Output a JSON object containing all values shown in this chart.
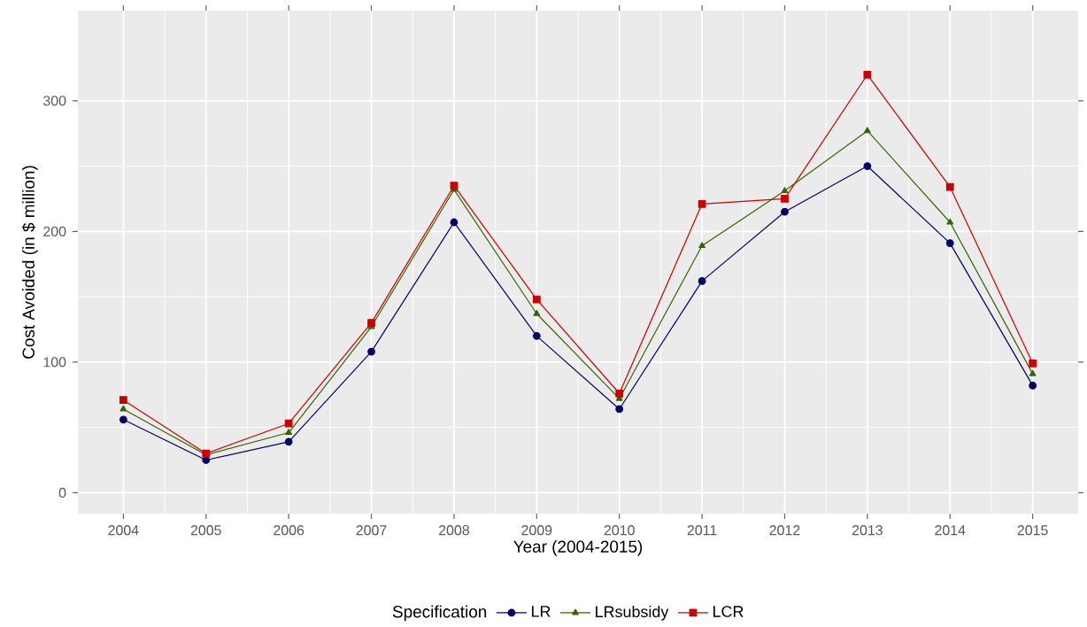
{
  "chart_data": {
    "type": "line",
    "xlabel": "Year (2004-2015)",
    "ylabel": "Cost Avoided (in $ million)",
    "legend_title": "Specification",
    "legend": "bottom",
    "grid": true,
    "line_style": "solid",
    "x": [
      2004,
      2005,
      2006,
      2007,
      2008,
      2009,
      2010,
      2011,
      2012,
      2013,
      2014,
      2015
    ],
    "xlim": [
      2003.45,
      2015.55
    ],
    "xticks": [
      2004,
      2005,
      2006,
      2007,
      2008,
      2009,
      2010,
      2011,
      2012,
      2013,
      2014,
      2015
    ],
    "ylim": [
      -16,
      369
    ],
    "yticks": [
      0,
      100,
      200,
      300
    ],
    "series": [
      {
        "name": "LR",
        "color": "#000066",
        "marker": "circle",
        "values": [
          56,
          25,
          39,
          108,
          207,
          120,
          64,
          162,
          215,
          250,
          191,
          82
        ]
      },
      {
        "name": "LRsubsidy",
        "color": "#336600",
        "marker": "triangle",
        "values": [
          64,
          29,
          46,
          127,
          232,
          137,
          72,
          189,
          231,
          277,
          207,
          91
        ]
      },
      {
        "name": "LCR",
        "color": "#cc0000",
        "marker": "square",
        "values": [
          71,
          30,
          53,
          130,
          235,
          148,
          76,
          221,
          225,
          320,
          234,
          99
        ]
      }
    ]
  }
}
